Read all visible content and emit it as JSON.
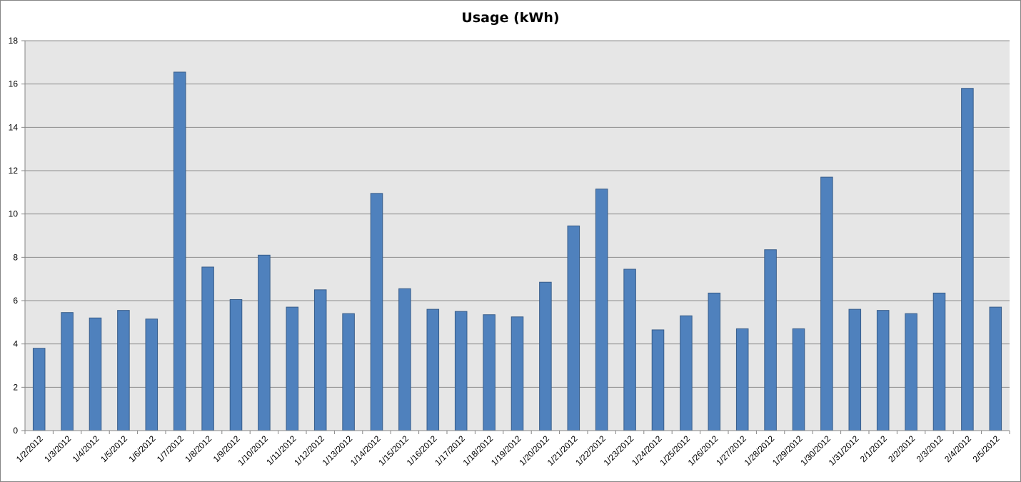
{
  "chart_data": {
    "type": "bar",
    "title": "Usage (kWh)",
    "xlabel": "",
    "ylabel": "",
    "ylim": [
      0,
      18
    ],
    "yticks": [
      0,
      2,
      4,
      6,
      8,
      10,
      12,
      14,
      16,
      18
    ],
    "grid": true,
    "legend": "none",
    "bar_color": "#4f81bd",
    "bar_edge_color": "#385d8a",
    "plot_background": "#e6e6e6",
    "categories": [
      "1/2/2012",
      "1/3/2012",
      "1/4/2012",
      "1/5/2012",
      "1/6/2012",
      "1/7/2012",
      "1/8/2012",
      "1/9/2012",
      "1/10/2012",
      "1/11/2012",
      "1/12/2012",
      "1/13/2012",
      "1/14/2012",
      "1/15/2012",
      "1/16/2012",
      "1/17/2012",
      "1/18/2012",
      "1/19/2012",
      "1/20/2012",
      "1/21/2012",
      "1/22/2012",
      "1/23/2012",
      "1/24/2012",
      "1/25/2012",
      "1/26/2012",
      "1/27/2012",
      "1/28/2012",
      "1/29/2012",
      "1/30/2012",
      "1/31/2012",
      "2/1/2012",
      "2/2/2012",
      "2/3/2012",
      "2/4/2012",
      "2/5/2012"
    ],
    "values": [
      3.8,
      5.45,
      5.2,
      5.55,
      5.15,
      16.55,
      7.55,
      6.05,
      8.1,
      5.7,
      6.5,
      5.4,
      10.95,
      6.55,
      5.6,
      5.5,
      5.35,
      5.25,
      6.85,
      9.45,
      11.15,
      7.45,
      4.65,
      5.3,
      6.35,
      4.7,
      8.35,
      4.7,
      11.7,
      5.6,
      5.55,
      5.4,
      6.35,
      15.8,
      5.7
    ]
  }
}
